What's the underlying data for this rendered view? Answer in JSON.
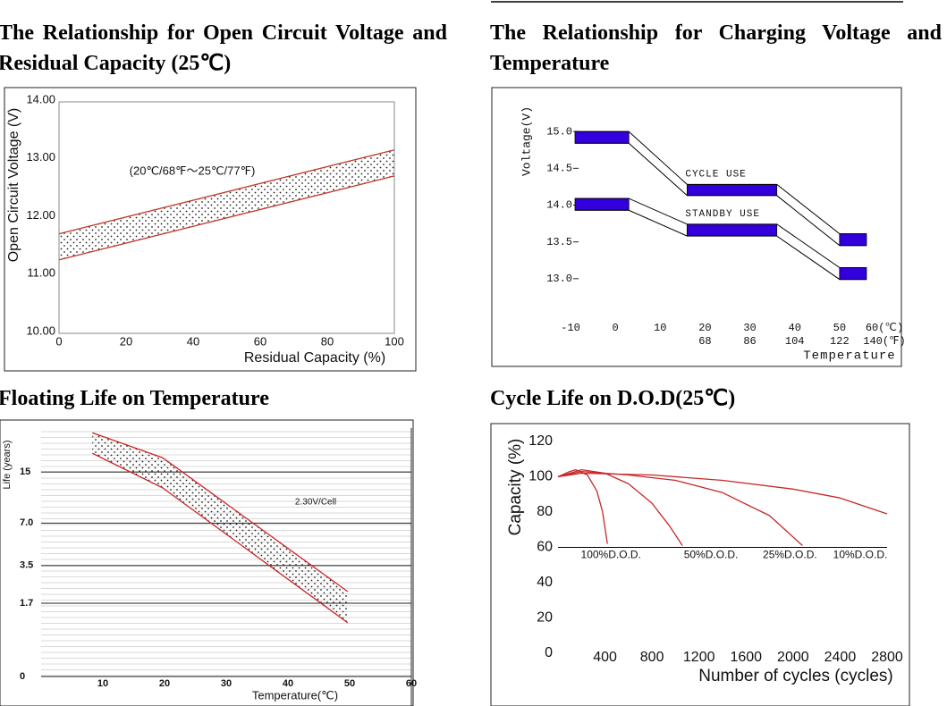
{
  "chart_data": [
    {
      "type": "band",
      "title": "The Relationship for Open Circuit Voltage and Residual Capacity (25℃)",
      "xlabel": "Residual Capacity  (%)",
      "ylabel": "Open Circuit Voltage (V)",
      "annotation": "(20℃/68℉～25℃/77℉)",
      "x": [
        0,
        100
      ],
      "upper": [
        11.72,
        13.17
      ],
      "lower": [
        11.27,
        12.72
      ],
      "color": "#c0392b",
      "xlim": [
        0,
        100
      ],
      "xticks": [
        0,
        20,
        40,
        60,
        80,
        100
      ],
      "ylim": [
        10,
        14
      ],
      "yticks": [
        {
          "value": 10,
          "label": "10.00"
        },
        {
          "value": 11,
          "label": "11.00"
        },
        {
          "value": 12,
          "label": "12.00"
        },
        {
          "value": 13,
          "label": "13.00"
        },
        {
          "value": 14,
          "label": "14.00"
        }
      ]
    },
    {
      "type": "step_band",
      "title": "The Relationship for Charging Voltage and Temperature",
      "xlabel": "Temperature",
      "ylabel": "Voltage(V)",
      "color": "#3300dd",
      "xlim": [
        -10,
        60
      ],
      "xticks": [
        -10,
        0,
        10,
        20,
        30,
        40,
        50,
        {
          "value": 60,
          "label": "60(℃)"
        }
      ],
      "x2lim": [
        14,
        140
      ],
      "x2ticks": [
        68,
        86,
        104,
        122,
        {
          "value": 140,
          "label": "140(℉)"
        }
      ],
      "ylim": [
        12.5,
        15.5
      ],
      "yticks": [
        {
          "value": 13,
          "label": "13.0"
        },
        13.5,
        {
          "value": 14,
          "label": "14.0"
        },
        14.5,
        {
          "value": 15,
          "label": "15.0"
        }
      ],
      "series": [
        {
          "name": "CYCLE USE",
          "x": [
            -9,
            3,
            16,
            36,
            50,
            56
          ],
          "upper": [
            15,
            15,
            14.28,
            14.28,
            13.61,
            13.61
          ],
          "lower": [
            14.84,
            14.84,
            14.13,
            14.13,
            13.45,
            13.45
          ]
        },
        {
          "name": "STANDBY USE",
          "x": [
            -9,
            3,
            16,
            36,
            50,
            56
          ],
          "upper": [
            14.09,
            14.09,
            13.74,
            13.74,
            13.15,
            13.15
          ],
          "lower": [
            13.93,
            13.93,
            13.58,
            13.58,
            12.99,
            12.99
          ]
        }
      ]
    },
    {
      "type": "band",
      "title": "Floating Life on Temperature",
      "xlabel": "Temperature(℃)",
      "ylabel": "Life (years)",
      "annotation": "2.30V/Cell",
      "x": [
        8.3,
        19.7,
        49.7
      ],
      "upper": [
        26.2,
        18.4,
        2.16
      ],
      "lower": [
        19.6,
        11.9,
        1.07
      ],
      "color": "#cc2222",
      "yscale": "log1p",
      "grid": true,
      "xlim": [
        0,
        60
      ],
      "xticks": [
        10,
        20,
        30,
        40,
        50,
        60
      ],
      "ylim": [
        0,
        28
      ],
      "yticks": [
        0,
        1.7,
        3.5,
        {
          "value": 7,
          "label": "7.0"
        },
        15
      ]
    },
    {
      "type": "line",
      "title": "Cycle Life on D.O.D(25℃)",
      "xlabel": "Number of cycles (cycles)",
      "ylabel": "Capacity  (%)",
      "hline": 60,
      "xlim": [
        0,
        2800
      ],
      "xticks": [
        400,
        800,
        1200,
        1600,
        2000,
        2400,
        2800
      ],
      "ylim": [
        0,
        120
      ],
      "yticks": [
        0,
        20,
        40,
        60,
        80,
        100,
        120
      ],
      "series": [
        {
          "name": "100%D.O.D.",
          "color": "#c62828",
          "x": [
            0,
            100,
            150,
            250,
            330,
            380,
            420
          ],
          "values": [
            100,
            103,
            104,
            101,
            92,
            80,
            62
          ]
        },
        {
          "name": "50%D.O.D.",
          "color": "#c62828",
          "x": [
            0,
            200,
            400,
            600,
            800,
            950,
            1058
          ],
          "values": [
            100,
            104,
            102,
            96,
            85,
            72,
            61
          ]
        },
        {
          "name": "25%D.O.D.",
          "color": "#c62828",
          "x": [
            0,
            200,
            600,
            1000,
            1400,
            1800,
            2080
          ],
          "values": [
            100,
            103,
            101,
            98,
            91,
            78,
            61
          ]
        },
        {
          "name": "10%D.O.D.",
          "color": "#c62828",
          "x": [
            0,
            200,
            800,
            1400,
            2000,
            2400,
            2800
          ],
          "values": [
            100,
            102,
            101,
            98,
            93,
            88,
            79
          ]
        }
      ]
    }
  ]
}
